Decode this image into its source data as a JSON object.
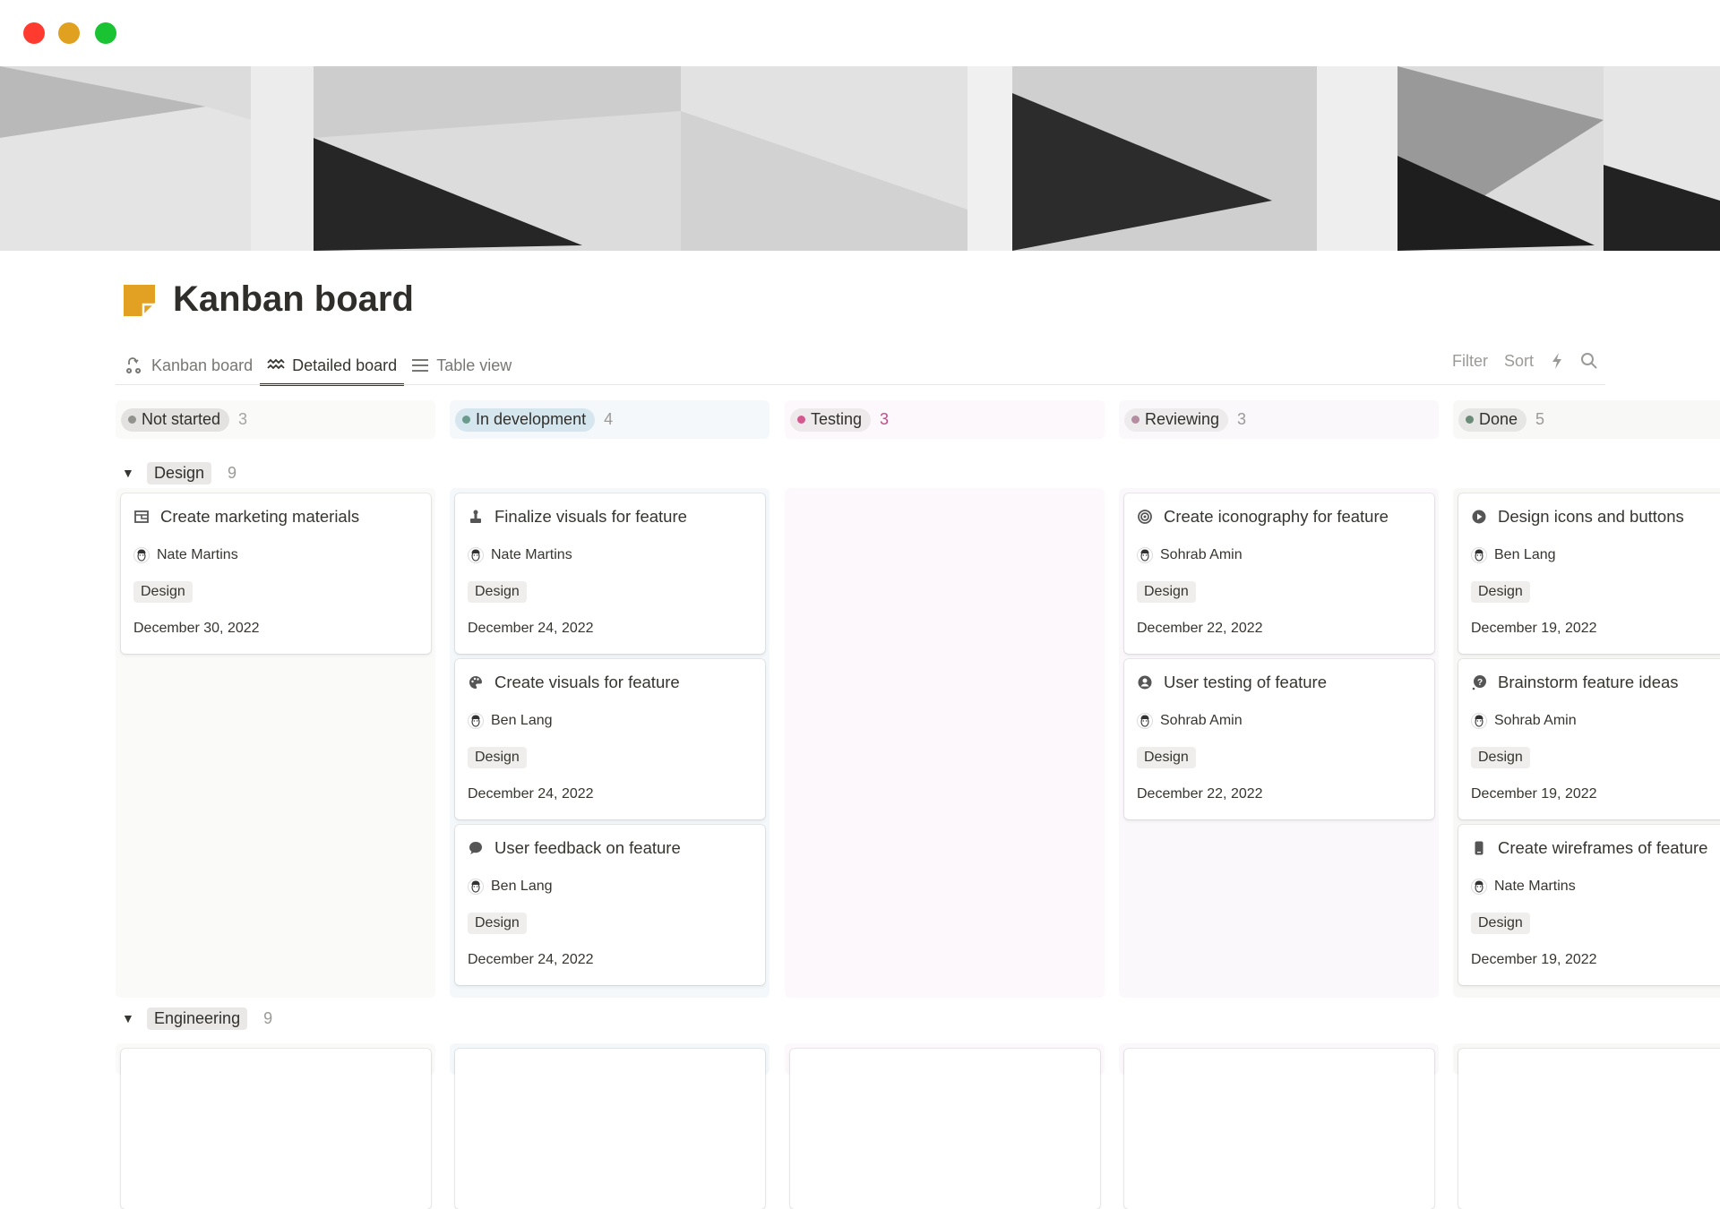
{
  "window": {
    "controls": [
      {
        "name": "close",
        "color": "#ff3b30"
      },
      {
        "name": "minimize",
        "color": "#e0a020"
      },
      {
        "name": "zoom",
        "color": "#19c332"
      }
    ]
  },
  "page": {
    "title": "Kanban board",
    "icon": "sticky-note-icon",
    "icon_color": "#e2a122"
  },
  "tabs": [
    {
      "label": "Kanban board",
      "icon": "kanban-icon",
      "active": false
    },
    {
      "label": "Detailed board",
      "icon": "zigzag-icon",
      "active": true
    },
    {
      "label": "Table view",
      "icon": "list-icon",
      "active": false
    }
  ],
  "toolbar": {
    "filter": "Filter",
    "sort": "Sort",
    "automation_icon": "lightning-icon",
    "search_icon": "search-icon"
  },
  "columns": [
    {
      "label": "Not started",
      "count": "3",
      "pill": "#e3e2e0",
      "dot": "#91918e",
      "bg": "#fafaf9",
      "count_color": "#a5a4a0"
    },
    {
      "label": "In development",
      "count": "4",
      "pill": "#d6e6ee",
      "dot": "#6a9a8c",
      "bg": "#f4f8fa",
      "count_color": "#9b9a97"
    },
    {
      "label": "Testing",
      "count": "3",
      "pill": "#eeeaec",
      "dot": "#d5588f",
      "bg": "#fcf8fb",
      "count_color": "#c14c8a"
    },
    {
      "label": "Reviewing",
      "count": "3",
      "pill": "#eeebed",
      "dot": "#b48ea0",
      "bg": "#fbf8fb",
      "count_color": "#9b9a97"
    },
    {
      "label": "Done",
      "count": "5",
      "pill": "#e6e6e4",
      "dot": "#6b8a78",
      "bg": "#f8f8f7",
      "count_color": "#9b9a97"
    }
  ],
  "groups": [
    {
      "label": "Design",
      "count": "9",
      "lanes": [
        [
          {
            "title": "Create marketing materials",
            "icon": "layout-icon",
            "assignee": "Nate Martins",
            "tag": "Design",
            "date": "December 30, 2022"
          }
        ],
        [
          {
            "title": "Finalize visuals for feature",
            "icon": "brush-icon",
            "assignee": "Nate Martins",
            "tag": "Design",
            "date": "December 24, 2022"
          },
          {
            "title": "Create visuals for feature",
            "icon": "palette-icon",
            "assignee": "Ben Lang",
            "tag": "Design",
            "date": "December 24, 2022"
          },
          {
            "title": "User feedback on feature",
            "icon": "speech-bubble-icon",
            "assignee": "Ben Lang",
            "tag": "Design",
            "date": "December 24, 2022"
          }
        ],
        [],
        [
          {
            "title": "Create iconography for feature",
            "icon": "target-icon",
            "assignee": "Sohrab Amin",
            "tag": "Design",
            "date": "December 22, 2022"
          },
          {
            "title": "User testing of feature",
            "icon": "user-circle-icon",
            "assignee": "Sohrab Amin",
            "tag": "Design",
            "date": "December 22, 2022"
          }
        ],
        [
          {
            "title": "Design icons and buttons",
            "icon": "play-circle-icon",
            "assignee": "Ben Lang",
            "tag": "Design",
            "date": "December 19, 2022"
          },
          {
            "title": "Brainstorm feature ideas",
            "icon": "question-bubble-icon",
            "assignee": "Sohrab Amin",
            "tag": "Design",
            "date": "December 19, 2022"
          },
          {
            "title": "Create wireframes of feature",
            "icon": "phone-icon",
            "assignee": "Nate Martins",
            "tag": "Design",
            "date": "December 19, 2022"
          }
        ]
      ]
    },
    {
      "label": "Engineering",
      "count": "9"
    }
  ]
}
